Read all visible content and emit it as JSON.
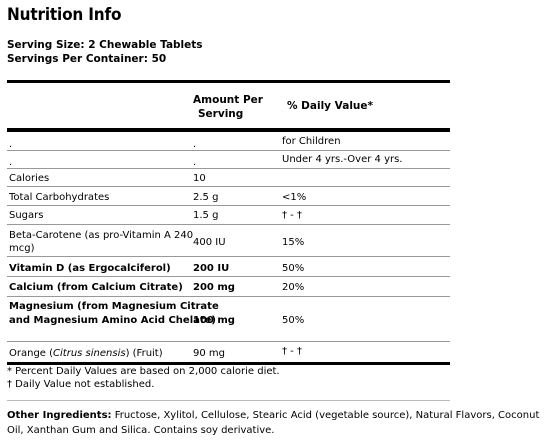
{
  "title": "Nutrition Info",
  "serving_size": "Serving Size: 2 Chewable Tablets",
  "servings_per_container": "Servings Per Container: 50",
  "headers": {
    "amount_line1": "Amount Per",
    "amount_line2": "Serving",
    "dv": "% Daily Value*"
  },
  "rows": [
    {
      "name": ".",
      "amount": ".",
      "dv": "for Children"
    },
    {
      "name": ".",
      "amount": ".",
      "dv": "Under 4 yrs.-Over 4 yrs."
    },
    {
      "name": "Calories",
      "amount": "10",
      "dv": ""
    },
    {
      "name": "Total Carbohydrates",
      "amount": "2.5 g",
      "dv": "<1%"
    },
    {
      "name": "Sugars",
      "amount": "1.5 g",
      "dv": "† - †"
    },
    {
      "name_line1": "Beta-Carotene (as pro-Vitamin A 240",
      "name_line2": "mcg)",
      "amount": "400 IU",
      "dv": "15%"
    },
    {
      "name": "Vitamin D (as Ergocalciferol)",
      "amount": "200 IU",
      "dv": "50%"
    },
    {
      "name": "Calcium (from Calcium Citrate)",
      "amount": "200 mg",
      "dv": "20%"
    },
    {
      "name_line1": "Magnesium (from Magnesium Citrate",
      "name_line2": "and Magnesium Amino Acid Chelate)",
      "amount": "100 mg",
      "dv": "50%"
    },
    {
      "name_pre": "Orange (",
      "name_italic": "Citrus sinensis",
      "name_post": ") (Fruit)",
      "amount": "90 mg",
      "dv": "† - †"
    }
  ],
  "footnotes": {
    "percent": "* Percent Daily Values are based on 2,000 calorie diet.",
    "dagger": "† Daily Value not established."
  },
  "other_ingredients": {
    "label": "Other Ingredients:",
    "text": " Fructose, Xylitol, Cellulose, Stearic Acid (vegetable source), Natural Flavors, Coconut Oil, Xanthan Gum and Silica.  Contains soy derivative."
  }
}
